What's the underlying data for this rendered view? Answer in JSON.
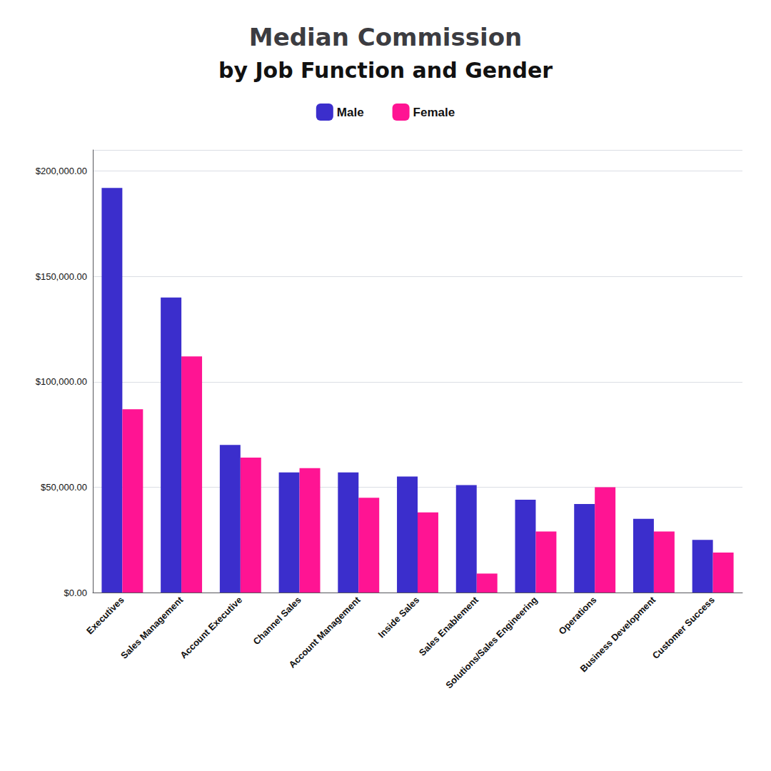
{
  "chart_data": {
    "type": "bar",
    "title": "Median Commission",
    "subtitle": "by Job Function and Gender",
    "categories": [
      "Executives",
      "Sales Management",
      "Account Executive",
      "Channel Sales",
      "Account Management",
      "Inside Sales",
      "Sales Enablement",
      "Solutions/Sales Engineering",
      "Operations",
      "Business Development",
      "Customer Success"
    ],
    "series": [
      {
        "name": "Male",
        "color": "#3B2ECC",
        "values": [
          192000,
          140000,
          70000,
          57000,
          57000,
          55000,
          51000,
          44000,
          42000,
          35000,
          25000
        ]
      },
      {
        "name": "Female",
        "color": "#FF1493",
        "values": [
          87000,
          112000,
          64000,
          59000,
          45000,
          38000,
          9000,
          29000,
          50000,
          29000,
          19000
        ]
      }
    ],
    "ylim": [
      0,
      210000
    ],
    "yticks": [
      {
        "value": 0,
        "label": "$0.00"
      },
      {
        "value": 50000,
        "label": "$50,000.00"
      },
      {
        "value": 100000,
        "label": "$100,000.00"
      },
      {
        "value": 150000,
        "label": "$150,000.00"
      },
      {
        "value": 200000,
        "label": "$200,000.00"
      }
    ],
    "grid": true,
    "legend": "top"
  }
}
